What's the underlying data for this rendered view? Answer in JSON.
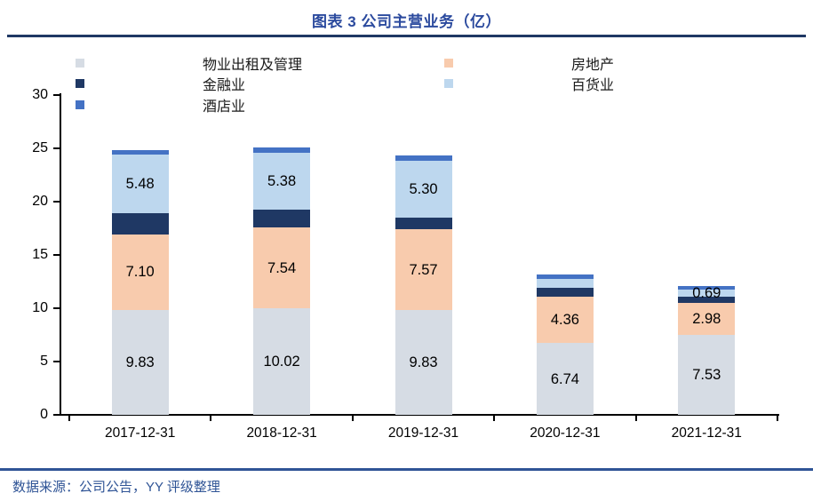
{
  "page": {
    "title": "图表 3 公司主营业务（亿）",
    "source_line": "数据来源：公司公告，YY 评级整理"
  },
  "colors": {
    "title_blue": "#2B4A9E",
    "rule_navy": "#1F3864",
    "rule_bottom_blue": "#2F5496",
    "source_blue": "#2F5496",
    "axis_black": "#000000"
  },
  "chart_data": {
    "type": "bar",
    "stacked": true,
    "title": "图表 3 公司主营业务（亿）",
    "categories": [
      "2017-12-31",
      "2018-12-31",
      "2019-12-31",
      "2020-12-31",
      "2021-12-31"
    ],
    "series": [
      {
        "name": "物业出租及管理",
        "color": "#D6DCE4",
        "values": [
          9.83,
          10.02,
          9.83,
          6.74,
          7.53
        ],
        "labels": [
          "9.83",
          "10.02",
          "9.83",
          "6.74",
          "7.53"
        ]
      },
      {
        "name": "房地产",
        "color": "#F8CBAD",
        "values": [
          7.1,
          7.54,
          7.57,
          4.36,
          2.98
        ],
        "labels": [
          "7.10",
          "7.54",
          "7.57",
          "4.36",
          "2.98"
        ]
      },
      {
        "name": "金融业",
        "color": "#1F3864",
        "values": [
          2.0,
          1.65,
          1.1,
          0.8,
          0.55
        ],
        "labels": [
          null,
          null,
          null,
          null,
          null
        ]
      },
      {
        "name": "百货业",
        "color": "#BDD7EE",
        "values": [
          5.48,
          5.38,
          5.3,
          0.83,
          0.69
        ],
        "labels": [
          "5.48",
          "5.38",
          "5.30",
          null,
          "0.69"
        ]
      },
      {
        "name": "酒店业",
        "color": "#4472C4",
        "values": [
          0.45,
          0.47,
          0.55,
          0.44,
          0.35
        ],
        "labels": [
          null,
          null,
          null,
          null,
          null
        ]
      }
    ],
    "xlabel": "",
    "ylabel": "",
    "ylim": [
      0,
      30
    ],
    "yticks": [
      0,
      5,
      10,
      15,
      20,
      25,
      30
    ],
    "legend_position": "top",
    "grid": false
  }
}
